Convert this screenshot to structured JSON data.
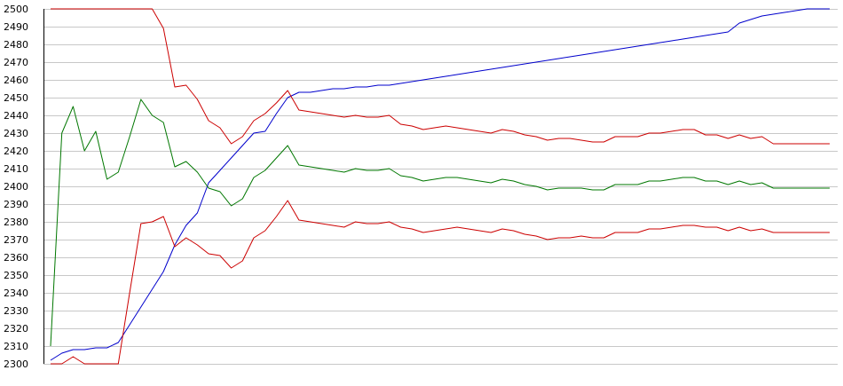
{
  "chart_data": {
    "type": "line",
    "title": "",
    "xlabel": "",
    "ylabel": "",
    "ylim": [
      2300,
      2500
    ],
    "yticks": [
      2300,
      2310,
      2320,
      2330,
      2340,
      2350,
      2360,
      2370,
      2380,
      2390,
      2400,
      2410,
      2420,
      2430,
      2440,
      2450,
      2460,
      2470,
      2480,
      2490,
      2500
    ],
    "grid": true,
    "legend": "none",
    "x": [
      0,
      1,
      2,
      3,
      4,
      5,
      6,
      7,
      8,
      9,
      10,
      11,
      12,
      13,
      14,
      15,
      16,
      17,
      18,
      19,
      20,
      21,
      22,
      23,
      24,
      25,
      26,
      27,
      28,
      29,
      30,
      31,
      32,
      33,
      34,
      35,
      36,
      37,
      38,
      39,
      40,
      41,
      42,
      43,
      44,
      45,
      46,
      47,
      48,
      49,
      50,
      51,
      52,
      53,
      54,
      55,
      56,
      57,
      58,
      59,
      60,
      61,
      62,
      63,
      64,
      65,
      66,
      67,
      68,
      69
    ],
    "series": [
      {
        "color": "#0000cc",
        "values": [
          2302,
          2306,
          2308,
          2308,
          2309,
          2309,
          2312,
          2322,
          2332,
          2342,
          2352,
          2367,
          2378,
          2385,
          2402,
          2409,
          2416,
          2423,
          2430,
          2431,
          2441,
          2450,
          2453,
          2453,
          2454,
          2455,
          2455,
          2456,
          2456,
          2457,
          2457,
          2458,
          2459,
          2460,
          2461,
          2462,
          2463,
          2464,
          2465,
          2466,
          2467,
          2468,
          2469,
          2470,
          2471,
          2472,
          2473,
          2474,
          2475,
          2476,
          2477,
          2478,
          2479,
          2480,
          2481,
          2482,
          2483,
          2484,
          2485,
          2486,
          2487,
          2492,
          2494,
          2496,
          2497,
          2498,
          2499,
          2500,
          2501,
          2502
        ]
      },
      {
        "color": "#cc0000",
        "values": [
          2500,
          2500,
          2500,
          2500,
          2500,
          2500,
          2500,
          2500,
          2500,
          2500,
          2489,
          2456,
          2457,
          2449,
          2437,
          2433,
          2424,
          2428,
          2437,
          2441,
          2447,
          2454,
          2443,
          2442,
          2441,
          2440,
          2439,
          2440,
          2439,
          2439,
          2440,
          2435,
          2434,
          2432,
          2433,
          2434,
          2433,
          2432,
          2431,
          2430,
          2432,
          2431,
          2429,
          2428,
          2426,
          2427,
          2427,
          2426,
          2425,
          2425,
          2428,
          2428,
          2428,
          2430,
          2430,
          2431,
          2432,
          2432,
          2429,
          2429,
          2427,
          2429,
          2427,
          2428,
          2424,
          2424,
          2424,
          2424,
          2424,
          2424
        ]
      },
      {
        "color": "#007700",
        "values": [
          2310,
          2430,
          2445,
          2420,
          2431,
          2404,
          2408,
          2428,
          2449,
          2440,
          2436,
          2411,
          2414,
          2408,
          2399,
          2397,
          2389,
          2393,
          2405,
          2409,
          2416,
          2423,
          2412,
          2411,
          2410,
          2409,
          2408,
          2410,
          2409,
          2409,
          2410,
          2406,
          2405,
          2403,
          2404,
          2405,
          2405,
          2404,
          2403,
          2402,
          2404,
          2403,
          2401,
          2400,
          2398,
          2399,
          2399,
          2399,
          2398,
          2398,
          2401,
          2401,
          2401,
          2403,
          2403,
          2404,
          2405,
          2405,
          2403,
          2403,
          2401,
          2403,
          2401,
          2402,
          2399,
          2399,
          2399,
          2399,
          2399,
          2399
        ]
      },
      {
        "color": "#cc0000",
        "values": [
          2300,
          2300,
          2304,
          2300,
          2300,
          2300,
          2300,
          2340,
          2379,
          2380,
          2383,
          2366,
          2371,
          2367,
          2362,
          2361,
          2354,
          2358,
          2371,
          2375,
          2383,
          2392,
          2381,
          2380,
          2379,
          2378,
          2377,
          2380,
          2379,
          2379,
          2380,
          2377,
          2376,
          2374,
          2375,
          2376,
          2377,
          2376,
          2375,
          2374,
          2376,
          2375,
          2373,
          2372,
          2370,
          2371,
          2371,
          2372,
          2371,
          2371,
          2374,
          2374,
          2374,
          2376,
          2376,
          2377,
          2378,
          2378,
          2377,
          2377,
          2375,
          2377,
          2375,
          2376,
          2374,
          2374,
          2374,
          2374,
          2374,
          2374
        ]
      }
    ]
  }
}
